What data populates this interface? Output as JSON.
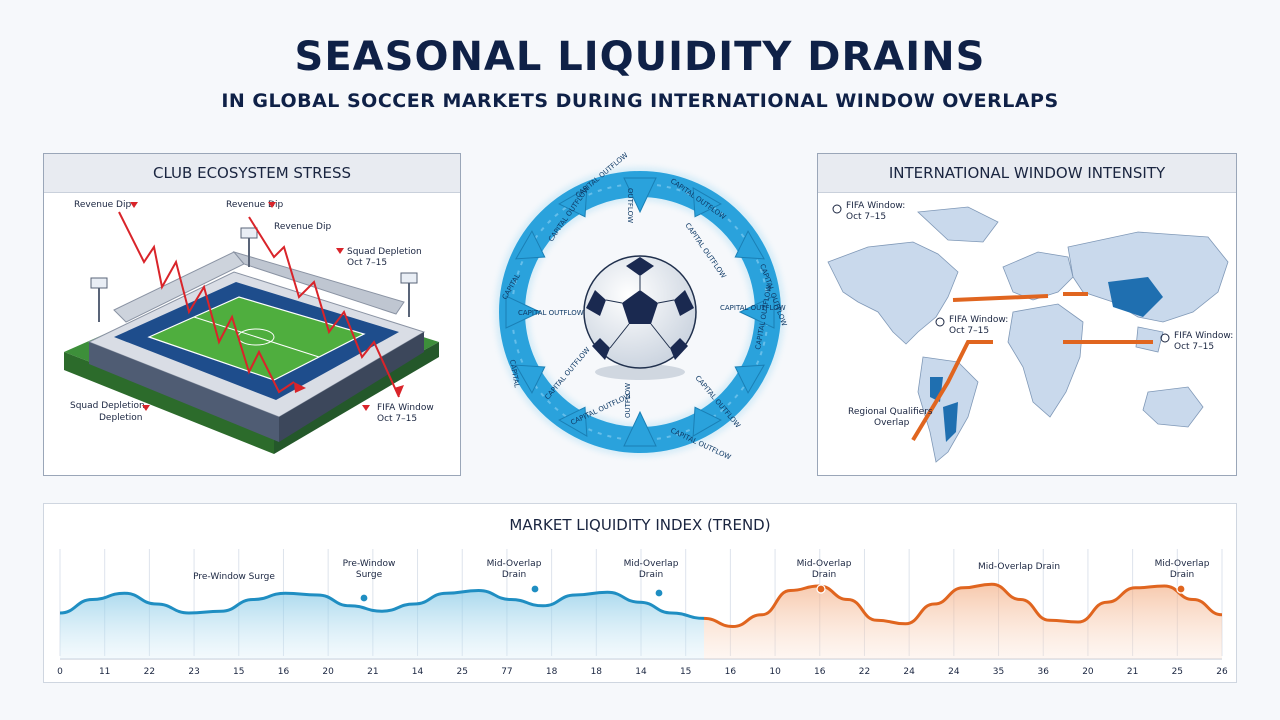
{
  "header": {
    "title": "SEASONAL LIQUIDITY DRAINS",
    "subtitle": "IN GLOBAL SOCCER MARKETS DURING INTERNATIONAL WINDOW OVERLAPS"
  },
  "club_panel": {
    "title": "CLUB ECOSYSTEM STRESS",
    "labels": {
      "revenue_dip_1": "Revenue Dip",
      "revenue_dip_2": "Revenue Dip",
      "revenue_dip_3": "Revenue Dip",
      "squad_depletion_top": "Squad Depletion",
      "squad_depletion_top_date": "Oct 7–15",
      "squad_depletion_bottom_1": "Squad Depletion",
      "squad_depletion_bottom_2": "Depletion",
      "fifa_window": "FIFA Window",
      "fifa_window_date": "Oct 7–15"
    }
  },
  "flow_diagram": {
    "capital_outflow": "CAPITAL OUTFLOW",
    "outflow": "OUTFLOW",
    "capital": "CAPITAL"
  },
  "intl_panel": {
    "title": "INTERNATIONAL WINDOW INTENSITY",
    "labels": {
      "fifa_1": "FIFA Window:",
      "fifa_1_date": "Oct 7–15",
      "fifa_2": "FIFA Window:",
      "fifa_2_date": "Oct 7–15",
      "fifa_3": "FIFA Window:",
      "fifa_3_date": "Oct 7–15",
      "regional_1": "Regional Qualifiers",
      "regional_2": "Overlap"
    }
  },
  "colors": {
    "navy": "#0f2147",
    "blue_line": "#1f8ec2",
    "orange_line": "#e0651f",
    "red_arrow": "#d9242a",
    "flow_blue": "#2aa2dc"
  },
  "chart_data": {
    "type": "area",
    "title": "MARKET LIQUIDITY INDEX (TREND)",
    "x_tick_labels": [
      "0",
      "11",
      "22",
      "23",
      "15",
      "16",
      "20",
      "21",
      "14",
      "25",
      "77",
      "18",
      "18",
      "14",
      "15",
      "16",
      "10",
      "16",
      "22",
      "24",
      "24",
      "35",
      "36",
      "20",
      "21",
      "25",
      "26"
    ],
    "series": [
      {
        "color": "#1f8ec2",
        "y": [
          0.4,
          0.55,
          0.62,
          0.5,
          0.4,
          0.42,
          0.55,
          0.62,
          0.6,
          0.48,
          0.42,
          0.5,
          0.62,
          0.65,
          0.55,
          0.48,
          0.6,
          0.63,
          0.52,
          0.4,
          0.34
        ]
      },
      {
        "color": "#e0651f",
        "y": [
          0.34,
          0.25,
          0.38,
          0.65,
          0.7,
          0.55,
          0.32,
          0.28,
          0.5,
          0.68,
          0.72,
          0.55,
          0.32,
          0.3,
          0.52,
          0.68,
          0.7,
          0.55,
          0.38
        ]
      }
    ],
    "annotations": [
      {
        "line1": "Pre-Window Surge",
        "line2": ""
      },
      {
        "line1": "Pre-Window",
        "line2": "Surge"
      },
      {
        "line1": "Mid-Overlap",
        "line2": "Drain"
      },
      {
        "line1": "Mid-Overlap",
        "line2": "Drain"
      },
      {
        "line1": "Mid-Overlap",
        "line2": "Drain"
      },
      {
        "line1": "Mid-Overlap Drain",
        "line2": ""
      },
      {
        "line1": "Mid-Overlap",
        "line2": "Drain"
      }
    ]
  }
}
